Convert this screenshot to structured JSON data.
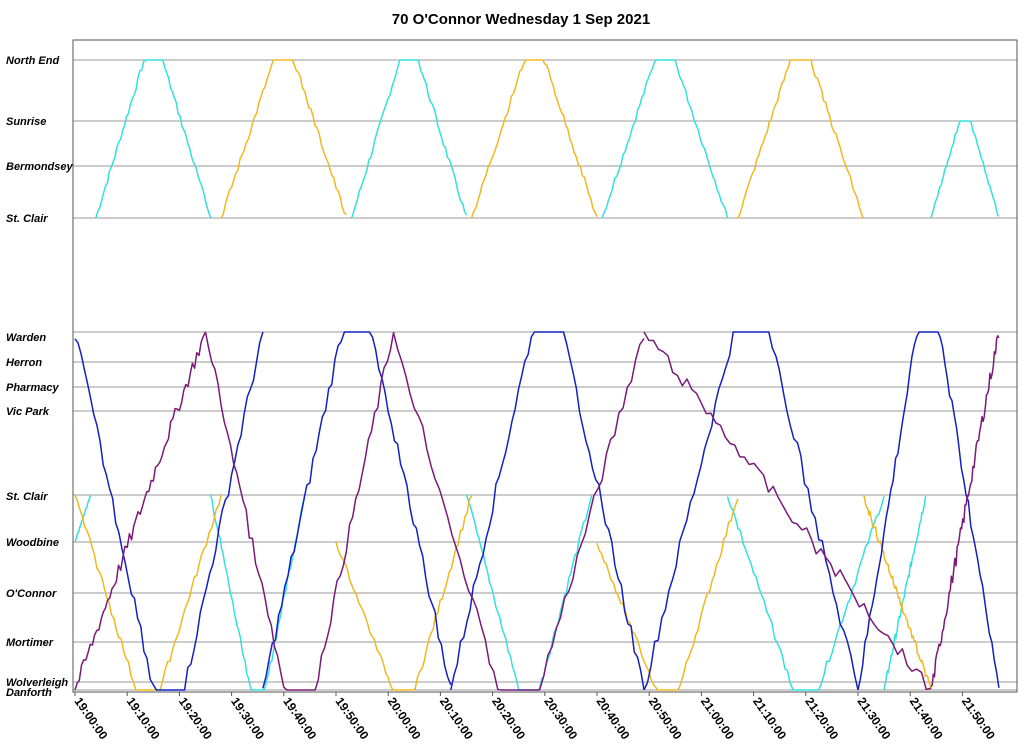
{
  "chart_data": {
    "type": "line",
    "title": "70 O'Connor Wednesday 1 Sep 2021",
    "xlabel": "",
    "ylabel": "",
    "x_axis": {
      "start": "19:00:00",
      "end": "21:57:00",
      "ticks": [
        "19:00:00",
        "19:10:00",
        "19:20:00",
        "19:30:00",
        "19:40:00",
        "19:50:00",
        "20:00:00",
        "20:10:00",
        "20:20:00",
        "20:30:00",
        "20:40:00",
        "20:50:00",
        "21:00:00",
        "21:10:00",
        "21:20:00",
        "21:30:00",
        "21:40:00",
        "21:50:00"
      ]
    },
    "y_axis": {
      "top_section": [
        "North End",
        "Sunrise",
        "Bermondsey",
        "St. Clair"
      ],
      "bottom_section": [
        "Warden",
        "Herron",
        "Pharmacy",
        "Vic Park",
        "St. Clair",
        "Woodbine",
        "O'Connor",
        "Mortimer",
        "Wolverleigh",
        "Danforth"
      ]
    },
    "grid": true,
    "legend": "none",
    "colors": {
      "cyan": "#33e0e0",
      "gold": "#f0b820",
      "blue": "#1420c0",
      "purple": "#7a1a78"
    },
    "series": [
      {
        "color_key": "cyan",
        "trips": [
          {
            "start": "19:04",
            "end": "19:26",
            "route": [
              "St. Clair",
              "North End",
              "St. Clair"
            ]
          },
          {
            "start": "19:53",
            "end": "20:15",
            "route": [
              "St. Clair",
              "North End",
              "St. Clair"
            ]
          },
          {
            "start": "20:41",
            "end": "21:05",
            "route": [
              "St. Clair",
              "North End",
              "St. Clair"
            ]
          },
          {
            "start": "21:44",
            "end": "21:57",
            "route": [
              "St. Clair",
              "Sunrise",
              "St. Clair"
            ]
          },
          {
            "start": "19:00",
            "end": "19:03",
            "route": [
              "Woodbine",
              "St. Clair"
            ]
          },
          {
            "start": "19:26",
            "end": "19:44",
            "route": [
              "St. Clair",
              "Danforth",
              "St. Clair"
            ]
          },
          {
            "start": "20:15",
            "end": "20:39",
            "route": [
              "St. Clair",
              "Danforth",
              "St. Clair"
            ]
          },
          {
            "start": "21:05",
            "end": "21:35",
            "route": [
              "St. Clair",
              "Danforth",
              "St. Clair"
            ]
          },
          {
            "start": "21:35",
            "end": "21:43",
            "route": [
              "Danforth",
              "St. Clair"
            ]
          }
        ]
      },
      {
        "color_key": "gold",
        "trips": [
          {
            "start": "19:28",
            "end": "19:52",
            "route": [
              "St. Clair",
              "North End",
              "St. Clair"
            ]
          },
          {
            "start": "20:16",
            "end": "20:40",
            "route": [
              "St. Clair",
              "North End",
              "St. Clair"
            ]
          },
          {
            "start": "21:07",
            "end": "21:31",
            "route": [
              "St. Clair",
              "North End",
              "St. Clair"
            ]
          },
          {
            "start": "19:00",
            "end": "19:28",
            "route": [
              "St. Clair",
              "Danforth",
              "St. Clair"
            ]
          },
          {
            "start": "19:50",
            "end": "20:16",
            "route": [
              "Woodbine",
              "Danforth",
              "St. Clair"
            ]
          },
          {
            "start": "20:40",
            "end": "21:07",
            "route": [
              "Woodbine",
              "Danforth",
              "St. Clair"
            ]
          },
          {
            "start": "21:31",
            "end": "21:44",
            "route": [
              "St. Clair",
              "Danforth"
            ]
          }
        ]
      },
      {
        "color_key": "blue",
        "trips": [
          {
            "start": "19:00",
            "end": "19:36",
            "route": [
              "Warden",
              "Danforth",
              "Warden"
            ]
          },
          {
            "start": "19:36",
            "end": "20:12",
            "route": [
              "Danforth",
              "Warden",
              "Danforth"
            ]
          },
          {
            "start": "20:12",
            "end": "20:49",
            "route": [
              "Danforth",
              "Warden",
              "Danforth"
            ]
          },
          {
            "start": "20:49",
            "end": "21:30",
            "route": [
              "Danforth",
              "Warden",
              "Danforth"
            ]
          },
          {
            "start": "21:30",
            "end": "21:57",
            "route": [
              "Danforth",
              "Warden",
              "Danforth"
            ]
          }
        ]
      },
      {
        "color_key": "purple",
        "trips": [
          {
            "start": "19:00",
            "end": "19:25",
            "route": [
              "Danforth",
              "Warden"
            ]
          },
          {
            "start": "19:25",
            "end": "20:01",
            "route": [
              "Warden",
              "Danforth",
              "Warden"
            ]
          },
          {
            "start": "20:01",
            "end": "20:49",
            "route": [
              "Warden",
              "Danforth",
              "Warden"
            ]
          },
          {
            "start": "20:49",
            "end": "21:44",
            "route": [
              "Warden",
              "Danforth"
            ]
          },
          {
            "start": "21:44",
            "end": "21:57",
            "route": [
              "Danforth",
              "Warden"
            ]
          }
        ]
      }
    ]
  }
}
